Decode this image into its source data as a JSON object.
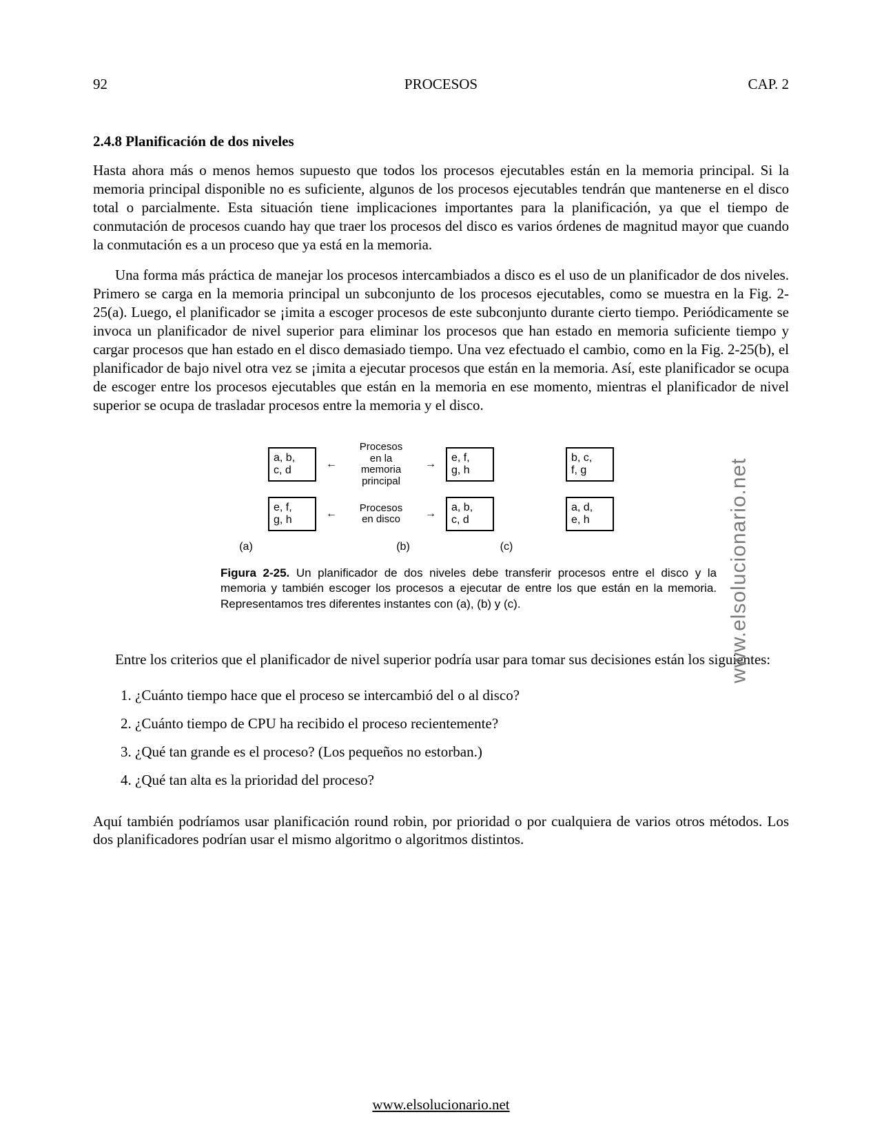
{
  "header": {
    "page_number": "92",
    "title": "PROCESOS",
    "chapter": "CAP. 2"
  },
  "section": {
    "number": "2.4.8",
    "title": "Planificación de dos niveles"
  },
  "paragraphs": {
    "p1": "Hasta ahora más o menos hemos supuesto que todos los procesos ejecutables están en la memoria principal. Si la memoria principal disponible no es suficiente, algunos de los procesos ejecutables tendrán que mantenerse en el disco total o parcialmente. Esta situación tiene implicaciones importantes para la planificación, ya que el tiempo de conmutación de procesos cuando hay que traer los procesos del disco es varios órdenes de magnitud mayor que cuando la conmutación es a un proceso que ya está en la memoria.",
    "p2": "Una forma más práctica de manejar los procesos intercambiados a disco es el uso de un planificador de dos niveles. Primero se carga en la memoria principal un subconjunto de los procesos ejecutables, como se muestra en la Fig. 2-25(a). Luego, el planificador se ¡imita a escoger procesos de este subconjunto durante cierto tiempo. Periódicamente se invoca un planificador de nivel superior para eliminar los procesos que han estado en memoria suficiente tiempo y cargar procesos que han estado en el disco demasiado tiempo. Una vez efectuado el cambio, como en la Fig. 2-25(b), el planificador de bajo nivel otra vez se ¡imita a ejecutar procesos que están en la memoria. Así, este planificador se ocupa de escoger entre los procesos ejecutables que están en la memoria en ese momento, mientras el planificador de nivel superior se ocupa de trasladar procesos entre la memoria y el disco.",
    "p3": "Entre los criterios que el planificador de nivel superior podría usar para tomar sus decisiones están los siguientes:",
    "p4": "Aquí también podríamos usar planificación round robin, por prioridad o por cualquiera de varios otros métodos. Los dos planificadores podrían usar el mismo algoritmo o algoritmos distintos."
  },
  "figure": {
    "row1": {
      "box_a": "a, b,\nc, d",
      "label": "Procesos\nen la\nmemoria\nprincipal",
      "box_b": "e, f,\ng, h",
      "box_c": "b, c,\nf, g"
    },
    "row2": {
      "box_a": "e, f,\ng, h",
      "label": "Procesos\nen disco",
      "box_b": "a, b,\nc, d",
      "box_c": "a, d,\ne, h"
    },
    "sublabels": {
      "a": "(a)",
      "b": "(b)",
      "c": "(c)"
    },
    "caption_title": "Figura 2-25.",
    "caption_text": " Un planificador de dos niveles debe transferir procesos entre el disco y la memoria y también escoger los procesos a ejecutar de entre los que están en la memoria. Representamos tres diferentes instantes con (a), (b) y (c)."
  },
  "list": {
    "i1": "1. ¿Cuánto tiempo hace que el proceso se intercambió del o al disco?",
    "i2": "2. ¿Cuánto tiempo de CPU ha recibido el proceso recientemente?",
    "i3": "3. ¿Qué tan grande es el proceso? (Los pequeños no estorban.)",
    "i4": "4. ¿Qué tan alta es la prioridad del proceso?"
  },
  "watermark": "www.elsolucionario.net",
  "footer": "www.elsolucionario.net",
  "colors": {
    "text": "#000000",
    "background": "#ffffff",
    "watermark": "#7a7a7a",
    "border": "#000000"
  },
  "typography": {
    "body_font": "Times New Roman",
    "body_size_pt": 16,
    "figure_font": "Arial",
    "figure_size_pt": 12,
    "caption_size_pt": 13
  }
}
